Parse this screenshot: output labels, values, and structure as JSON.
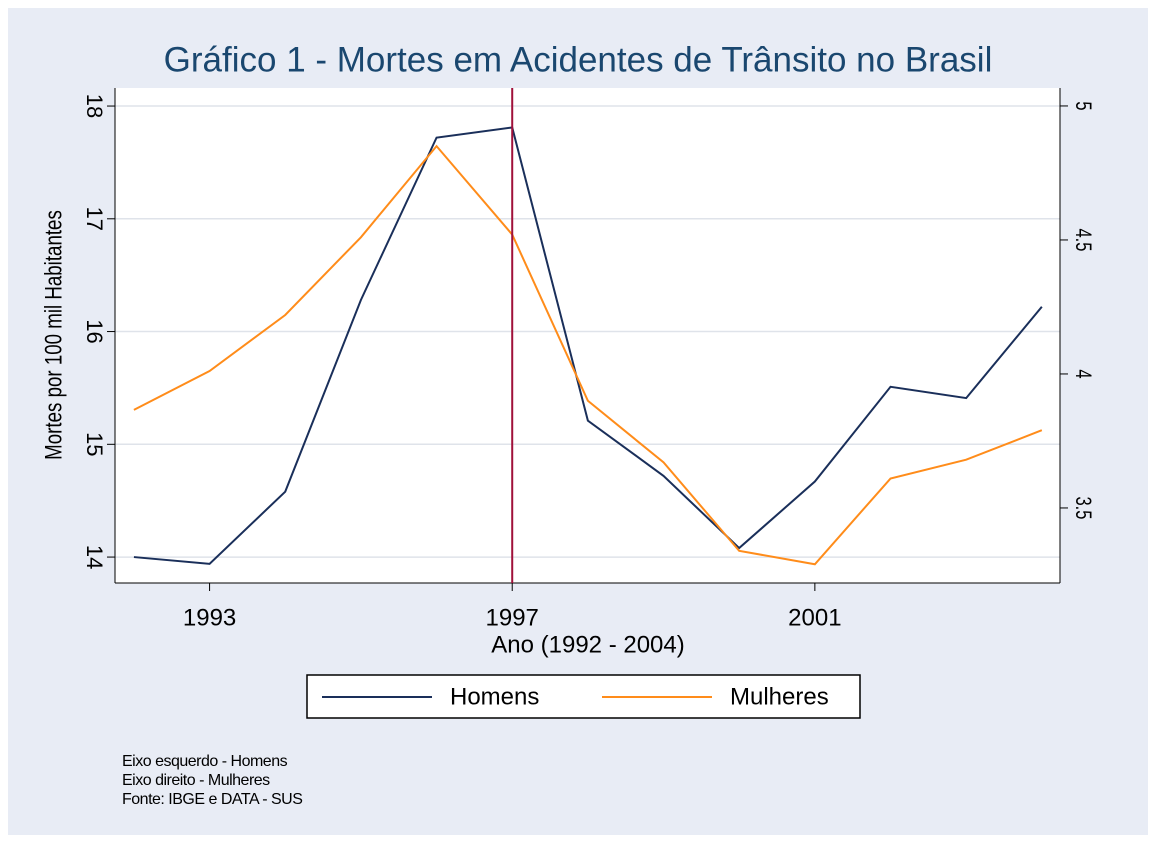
{
  "chart_data": {
    "type": "line",
    "title": "Gráfico 1 - Mortes em Acidentes de Trânsito no Brasil",
    "x_label": "Ano (1992 - 2004)",
    "y_label": "Mortes por 100 mil Habitantes",
    "x": [
      1992,
      1993,
      1994,
      1995,
      1996,
      1997,
      1998,
      1999,
      2000,
      2001,
      2002,
      2003,
      2004
    ],
    "xlim": [
      1991.75,
      2004.24
    ],
    "xticks": [
      1993,
      1997,
      2001
    ],
    "ylim": [
      13.77,
      18.16
    ],
    "yticks": [
      14,
      15,
      16,
      17,
      18
    ],
    "y2lim": [
      3.22,
      5.067
    ],
    "y2ticks": [
      3.5,
      4,
      4.5,
      5
    ],
    "grid": true,
    "vline": 1997,
    "vline_color": "#a0103a",
    "legend": "bottom",
    "series": [
      {
        "name": "Homens",
        "color": "#1a2f5a",
        "values": [
          14.0,
          13.94,
          14.58,
          16.28,
          17.72,
          17.81,
          15.21,
          14.72,
          14.08,
          14.67,
          15.51,
          15.41,
          16.22
        ]
      },
      {
        "name": "Mulheres",
        "color": "#ff8c1a",
        "axis": "y2",
        "values": [
          3.866,
          4.011,
          4.22,
          4.51,
          4.85,
          4.52,
          3.9,
          3.67,
          3.34,
          3.29,
          3.61,
          3.68,
          3.79
        ]
      }
    ],
    "notes": [
      "Eixo esquerdo - Homens",
      "Eixo direito - Mulheres",
      "Fonte: IBGE e DATA - SUS"
    ]
  }
}
